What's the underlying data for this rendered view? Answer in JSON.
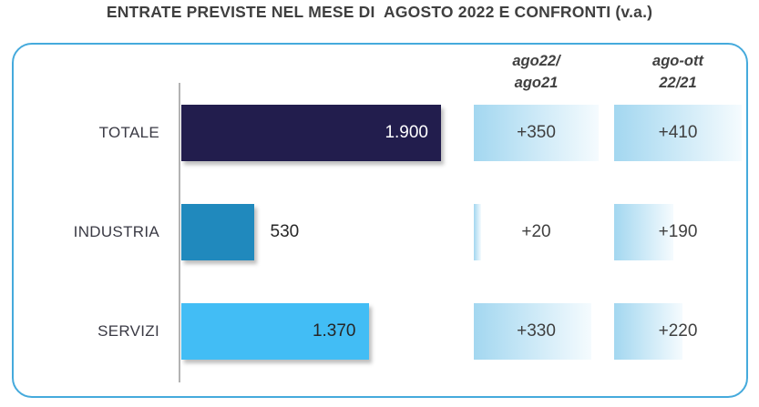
{
  "title": "ENTRATE PREVISTE NEL MESE DI  AGOSTO 2022 E CONFRONTI (v.a.)",
  "chart_data": {
    "type": "bar",
    "orientation": "horizontal",
    "title": "ENTRATE PREVISTE NEL MESE DI  AGOSTO 2022 E CONFRONTI (v.a.)",
    "categories": [
      "TOTALE",
      "INDUSTRIA",
      "SERVIZI"
    ],
    "series": [
      {
        "name": "Entrate previste agosto 2022 (v.a.)",
        "values": [
          1900,
          530,
          1370
        ],
        "labels": [
          "1.900",
          "530",
          "1.370"
        ]
      },
      {
        "name": "ago22/ago21",
        "values": [
          350,
          20,
          330
        ],
        "labels": [
          "+350",
          "+20",
          "+330"
        ]
      },
      {
        "name": "ago-ott 22/21",
        "values": [
          410,
          190,
          220
        ],
        "labels": [
          "+410",
          "+190",
          "+220"
        ]
      }
    ],
    "xlim": [
      0,
      1900
    ],
    "comparison_scale_max": [
      350,
      410
    ],
    "grid": false,
    "legend": false
  },
  "columns": [
    {
      "header_line1": "ago22/",
      "header_line2": "ago21"
    },
    {
      "header_line1": "ago-ott",
      "header_line2": "22/21"
    }
  ],
  "rows": [
    {
      "category": "TOTALE",
      "value": 1900,
      "value_label": "1.900",
      "label_position": "inside",
      "bar_color": "#221d4d",
      "value_color": "#ffffff",
      "comp1_value": 350,
      "comp1_label": "+350",
      "comp2_value": 410,
      "comp2_label": "+410"
    },
    {
      "category": "INDUSTRIA",
      "value": 530,
      "value_label": "530",
      "label_position": "outside",
      "bar_color": "#2089bd",
      "value_color": "#262626",
      "comp1_value": 20,
      "comp1_label": "+20",
      "comp2_value": 190,
      "comp2_label": "+190"
    },
    {
      "category": "SERVIZI",
      "value": 1370,
      "value_label": "1.370",
      "label_position": "inside",
      "bar_color": "#42bdf5",
      "value_color": "#262626",
      "comp1_value": 330,
      "comp1_label": "+330",
      "comp2_value": 220,
      "comp2_label": "+220"
    }
  ],
  "colors": {
    "panel_border": "#45aadc",
    "bar_totale": "#221d4d",
    "bar_industria": "#2089bd",
    "bar_servizi": "#42bdf5",
    "databar_gradient_start": "#a3d7f0",
    "databar_gradient_end": "#f5fbfe",
    "axis_line": "#b3b3b3",
    "title_text": "#3f3f3f",
    "label_text": "#3a3a44",
    "comp_text": "#404040"
  }
}
